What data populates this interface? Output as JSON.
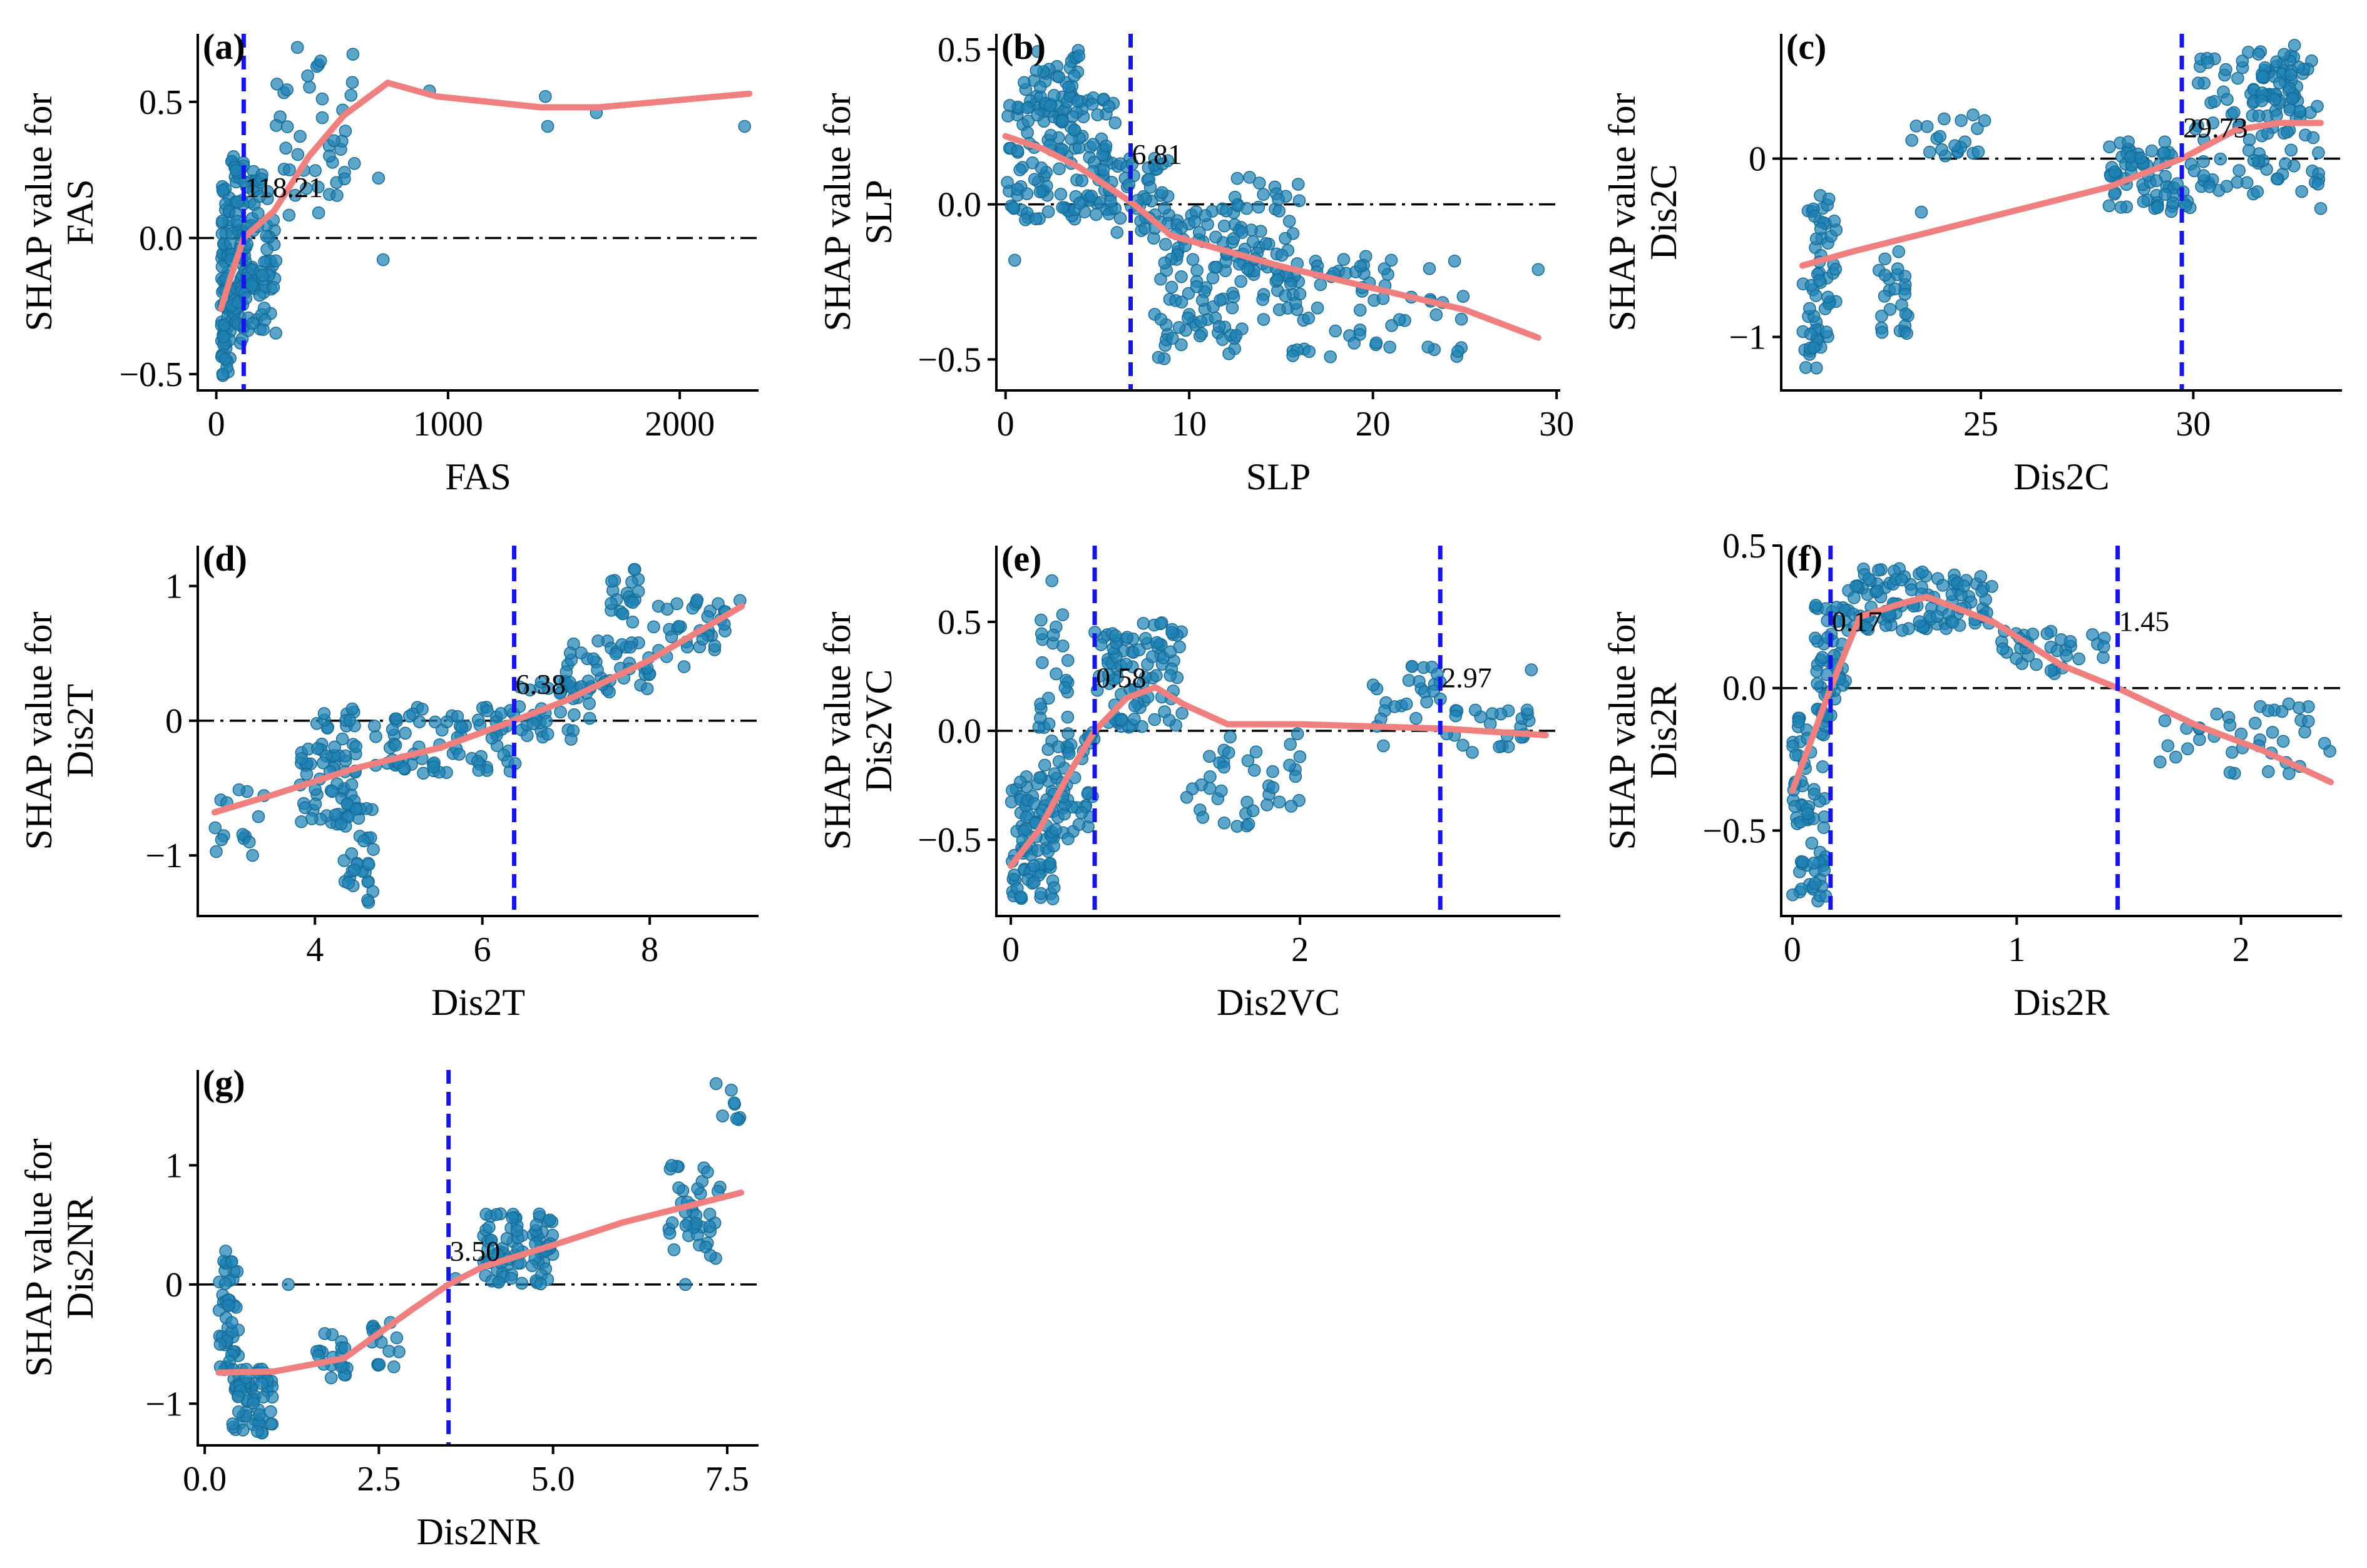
{
  "figure": {
    "background": "#ffffff"
  },
  "colors": {
    "points": "#1f82b4",
    "fit": "#f07f7f",
    "threshold": "#1515e8",
    "zero": "#000000"
  },
  "chart_data": [
    {
      "id": "a",
      "type": "scatter",
      "panel_label": "(a)",
      "xlabel": "FAS",
      "ylabel_lines": [
        "SHAP value for",
        "FAS"
      ],
      "xlim": [
        -80,
        2340
      ],
      "ylim": [
        -0.56,
        0.75
      ],
      "xticks": [
        0,
        1000,
        2000
      ],
      "xtick_labels": [
        "0",
        "1000",
        "2000"
      ],
      "yticks": [
        -0.5,
        0.0,
        0.5
      ],
      "ytick_labels": [
        "−0.5",
        "0.0",
        "0.5"
      ],
      "thresholds": [
        {
          "x": 118.21,
          "label": "118.21",
          "label_y": 0.15
        }
      ],
      "fit": [
        [
          20,
          -0.26
        ],
        [
          60,
          -0.15
        ],
        [
          118,
          0
        ],
        [
          250,
          0.1
        ],
        [
          400,
          0.3
        ],
        [
          550,
          0.45
        ],
        [
          740,
          0.57
        ],
        [
          950,
          0.52
        ],
        [
          1400,
          0.48
        ],
        [
          1650,
          0.48
        ],
        [
          2300,
          0.53
        ]
      ],
      "clusters": [
        {
          "x": [
            20,
            60
          ],
          "y": [
            -0.52,
            0.2
          ],
          "n": 70
        },
        {
          "x": [
            60,
            120
          ],
          "y": [
            -0.4,
            0.3
          ],
          "n": 70
        },
        {
          "x": [
            120,
            260
          ],
          "y": [
            -0.35,
            0.25
          ],
          "n": 80
        },
        {
          "x": [
            250,
            600
          ],
          "y": [
            0.05,
            0.7
          ],
          "n": 40
        }
      ],
      "extra_points": [
        [
          700,
          0.22
        ],
        [
          720,
          -0.08
        ],
        [
          920,
          0.54
        ],
        [
          1420,
          0.52
        ],
        [
          1430,
          0.41
        ],
        [
          1640,
          0.46
        ],
        [
          2280,
          0.41
        ],
        [
          300,
          0.33
        ],
        [
          350,
          0.7
        ],
        [
          450,
          0.65
        ]
      ]
    },
    {
      "id": "b",
      "type": "scatter",
      "panel_label": "(b)",
      "xlabel": "SLP",
      "ylabel_lines": [
        "SHAP value for",
        "SLP"
      ],
      "xlim": [
        -0.5,
        30.2
      ],
      "ylim": [
        -0.6,
        0.55
      ],
      "xticks": [
        0,
        10,
        20,
        30
      ],
      "xtick_labels": [
        "0",
        "10",
        "20",
        "30"
      ],
      "yticks": [
        -0.5,
        0.0,
        0.5
      ],
      "ytick_labels": [
        "−0.5",
        "0.0",
        "0.5"
      ],
      "thresholds": [
        {
          "x": 6.81,
          "label": "6.81",
          "label_y": 0.13
        }
      ],
      "fit": [
        [
          0,
          0.22
        ],
        [
          2,
          0.18
        ],
        [
          4,
          0.12
        ],
        [
          6,
          0.04
        ],
        [
          7,
          0
        ],
        [
          9,
          -0.1
        ],
        [
          12,
          -0.15
        ],
        [
          15,
          -0.2
        ],
        [
          20,
          -0.27
        ],
        [
          25,
          -0.34
        ],
        [
          29,
          -0.43
        ]
      ],
      "clusters": [
        {
          "x": [
            0,
            6
          ],
          "y": [
            -0.05,
            0.35
          ],
          "n": 140
        },
        {
          "x": [
            1,
            4
          ],
          "y": [
            0.25,
            0.5
          ],
          "n": 40
        },
        {
          "x": [
            6,
            9
          ],
          "y": [
            -0.1,
            0.15
          ],
          "n": 40
        },
        {
          "x": [
            8,
            13
          ],
          "y": [
            -0.5,
            0.0
          ],
          "n": 100
        },
        {
          "x": [
            12,
            16
          ],
          "y": [
            -0.3,
            0.1
          ],
          "n": 50
        },
        {
          "x": [
            14,
            25
          ],
          "y": [
            -0.5,
            -0.15
          ],
          "n": 70
        }
      ],
      "extra_points": [
        [
          29,
          -0.21
        ],
        [
          0.5,
          -0.18
        ],
        [
          21,
          -0.18
        ],
        [
          23,
          -0.46
        ]
      ]
    },
    {
      "id": "c",
      "type": "scatter",
      "panel_label": "(c)",
      "xlabel": "Dis2C",
      "ylabel_lines": [
        "SHAP value for",
        "Dis2C"
      ],
      "xlim": [
        20.3,
        33.5
      ],
      "ylim": [
        -1.3,
        0.7
      ],
      "xticks": [
        25,
        30
      ],
      "xtick_labels": [
        "25",
        "30"
      ],
      "yticks": [
        -1,
        0
      ],
      "ytick_labels": [
        "−1",
        "0"
      ],
      "thresholds": [
        {
          "x": 29.73,
          "label": "29.73",
          "label_y": 0.12
        }
      ],
      "fit": [
        [
          20.8,
          -0.6
        ],
        [
          22,
          -0.52
        ],
        [
          24,
          -0.4
        ],
        [
          26,
          -0.28
        ],
        [
          28,
          -0.16
        ],
        [
          29.73,
          0
        ],
        [
          31,
          0.16
        ],
        [
          32,
          0.2
        ],
        [
          33,
          0.2
        ]
      ],
      "clusters": [
        {
          "x": [
            20.8,
            21.6
          ],
          "y": [
            -1.2,
            -0.2
          ],
          "n": 60
        },
        {
          "x": [
            22.6,
            23.3
          ],
          "y": [
            -1.0,
            -0.5
          ],
          "n": 25
        },
        {
          "x": [
            23.3,
            25.2
          ],
          "y": [
            0.0,
            0.25
          ],
          "n": 20
        },
        {
          "x": [
            28,
            30
          ],
          "y": [
            -0.3,
            0.1
          ],
          "n": 70
        },
        {
          "x": [
            30,
            33
          ],
          "y": [
            -0.2,
            0.6
          ],
          "n": 110
        },
        {
          "x": [
            31.5,
            32.5
          ],
          "y": [
            0.3,
            0.65
          ],
          "n": 30
        }
      ],
      "extra_points": [
        [
          23.6,
          -0.3
        ],
        [
          33,
          -0.28
        ]
      ]
    },
    {
      "id": "d",
      "type": "scatter",
      "panel_label": "(d)",
      "xlabel": "Dis2T",
      "ylabel_lines": [
        "SHAP value for",
        "Dis2T"
      ],
      "xlim": [
        2.6,
        9.3
      ],
      "ylim": [
        -1.45,
        1.3
      ],
      "xticks": [
        4,
        6,
        8
      ],
      "xtick_labels": [
        "4",
        "6",
        "8"
      ],
      "yticks": [
        -1,
        0,
        1
      ],
      "ytick_labels": [
        "−1",
        "0",
        "1"
      ],
      "thresholds": [
        {
          "x": 6.38,
          "label": "6.38",
          "label_y": 0.2
        }
      ],
      "fit": [
        [
          2.8,
          -0.68
        ],
        [
          3.5,
          -0.55
        ],
        [
          4.5,
          -0.35
        ],
        [
          5.5,
          -0.2
        ],
        [
          6.38,
          0
        ],
        [
          7,
          0.15
        ],
        [
          8,
          0.45
        ],
        [
          9.1,
          0.85
        ]
      ],
      "clusters": [
        {
          "x": [
            2.8,
            3.4
          ],
          "y": [
            -1.0,
            -0.5
          ],
          "n": 15
        },
        {
          "x": [
            3.8,
            4.5
          ],
          "y": [
            -0.8,
            0.1
          ],
          "n": 70
        },
        {
          "x": [
            4.3,
            4.7
          ],
          "y": [
            -1.35,
            -0.6
          ],
          "n": 35
        },
        {
          "x": [
            4.7,
            6.4
          ],
          "y": [
            -0.4,
            0.1
          ],
          "n": 80
        },
        {
          "x": [
            6.4,
            7.3
          ],
          "y": [
            -0.15,
            0.3
          ],
          "n": 40
        },
        {
          "x": [
            7,
            8
          ],
          "y": [
            0.2,
            0.6
          ],
          "n": 40
        },
        {
          "x": [
            7.5,
            7.9
          ],
          "y": [
            0.7,
            1.15
          ],
          "n": 20
        },
        {
          "x": [
            8,
            9.1
          ],
          "y": [
            0.4,
            0.9
          ],
          "n": 35
        }
      ],
      "extra_points": []
    },
    {
      "id": "e",
      "type": "scatter",
      "panel_label": "(e)",
      "xlabel": "Dis2VC",
      "ylabel_lines": [
        "SHAP value for",
        "Dis2VC"
      ],
      "xlim": [
        -0.1,
        3.8
      ],
      "ylim": [
        -0.85,
        0.85
      ],
      "xticks": [
        0,
        2
      ],
      "xtick_labels": [
        "0",
        "2"
      ],
      "yticks": [
        -0.5,
        0.0,
        0.5
      ],
      "ytick_labels": [
        "−0.5",
        "0.0",
        "0.5"
      ],
      "thresholds": [
        {
          "x": 0.58,
          "label": "0.58",
          "label_y": 0.2
        },
        {
          "x": 2.97,
          "label": "2.97",
          "label_y": 0.2
        }
      ],
      "fit": [
        [
          0,
          -0.62
        ],
        [
          0.2,
          -0.45
        ],
        [
          0.4,
          -0.2
        ],
        [
          0.58,
          0
        ],
        [
          0.8,
          0.15
        ],
        [
          1,
          0.2
        ],
        [
          1.2,
          0.12
        ],
        [
          1.5,
          0.03
        ],
        [
          2,
          0.03
        ],
        [
          3,
          0.01
        ],
        [
          3.7,
          -0.02
        ]
      ],
      "clusters": [
        {
          "x": [
            0,
            0.3
          ],
          "y": [
            -0.78,
            -0.2
          ],
          "n": 80
        },
        {
          "x": [
            0.15,
            0.4
          ],
          "y": [
            -0.5,
            0.7
          ],
          "n": 40
        },
        {
          "x": [
            0.3,
            0.58
          ],
          "y": [
            -0.5,
            0.0
          ],
          "n": 40
        },
        {
          "x": [
            0.58,
            1.2
          ],
          "y": [
            0.0,
            0.5
          ],
          "n": 90
        },
        {
          "x": [
            1.2,
            2.0
          ],
          "y": [
            -0.45,
            0.0
          ],
          "n": 40
        },
        {
          "x": [
            2.4,
            3.0
          ],
          "y": [
            -0.1,
            0.3
          ],
          "n": 25
        },
        {
          "x": [
            3.0,
            3.6
          ],
          "y": [
            -0.1,
            0.1
          ],
          "n": 25
        }
      ],
      "extra_points": [
        [
          3.6,
          0.28
        ]
      ]
    },
    {
      "id": "f",
      "type": "scatter",
      "panel_label": "(f)",
      "xlabel": "Dis2R",
      "ylabel_lines": [
        "SHAP value for",
        "Dis2R"
      ],
      "xlim": [
        -0.05,
        2.45
      ],
      "ylim": [
        -0.8,
        0.5
      ],
      "xticks": [
        0,
        1,
        2
      ],
      "xtick_labels": [
        "0",
        "1",
        "2"
      ],
      "yticks": [
        -0.5,
        0.0,
        0.5
      ],
      "ytick_labels": [
        "−0.5",
        "0.0",
        "0.5"
      ],
      "thresholds": [
        {
          "x": 0.17,
          "label": "0.17",
          "label_y": 0.2
        },
        {
          "x": 1.45,
          "label": "1.45",
          "label_y": 0.2
        }
      ],
      "fit": [
        [
          0,
          -0.36
        ],
        [
          0.1,
          -0.15
        ],
        [
          0.17,
          0
        ],
        [
          0.3,
          0.25
        ],
        [
          0.5,
          0.3
        ],
        [
          0.6,
          0.32
        ],
        [
          0.9,
          0.23
        ],
        [
          1.2,
          0.08
        ],
        [
          1.45,
          0
        ],
        [
          1.8,
          -0.13
        ],
        [
          2.1,
          -0.22
        ],
        [
          2.4,
          -0.33
        ]
      ],
      "clusters": [
        {
          "x": [
            0,
            0.15
          ],
          "y": [
            -0.75,
            -0.1
          ],
          "n": 70
        },
        {
          "x": [
            0.1,
            0.25
          ],
          "y": [
            -0.1,
            0.3
          ],
          "n": 50
        },
        {
          "x": [
            0.25,
            0.9
          ],
          "y": [
            0.2,
            0.42
          ],
          "n": 110
        },
        {
          "x": [
            0.9,
            1.4
          ],
          "y": [
            0.05,
            0.2
          ],
          "n": 35
        },
        {
          "x": [
            1.6,
            2.4
          ],
          "y": [
            -0.3,
            -0.05
          ],
          "n": 40
        }
      ],
      "extra_points": []
    },
    {
      "id": "g",
      "type": "scatter",
      "panel_label": "(g)",
      "xlabel": "Dis2NR",
      "ylabel_lines": [
        "SHAP value for",
        "Dis2NR"
      ],
      "xlim": [
        -0.1,
        7.95
      ],
      "ylim": [
        -1.35,
        1.8
      ],
      "xticks": [
        0.0,
        2.5,
        5.0,
        7.5
      ],
      "xtick_labels": [
        "0.0",
        "2.5",
        "5.0",
        "7.5"
      ],
      "yticks": [
        -1,
        0,
        1
      ],
      "ytick_labels": [
        "−1",
        "0",
        "1"
      ],
      "thresholds": [
        {
          "x": 3.5,
          "label": "3.50",
          "label_y": 0.2
        }
      ],
      "fit": [
        [
          0.2,
          -0.74
        ],
        [
          1,
          -0.73
        ],
        [
          2,
          -0.62
        ],
        [
          3,
          -0.2
        ],
        [
          3.5,
          0
        ],
        [
          4,
          0.15
        ],
        [
          5,
          0.33
        ],
        [
          6,
          0.52
        ],
        [
          7.7,
          0.77
        ]
      ],
      "clusters": [
        {
          "x": [
            0.2,
            0.5
          ],
          "y": [
            -0.9,
            0.2
          ],
          "n": 50
        },
        {
          "x": [
            0.4,
            1.0
          ],
          "y": [
            -1.25,
            -0.7
          ],
          "n": 60
        },
        {
          "x": [
            1.6,
            2.1
          ],
          "y": [
            -0.8,
            -0.4
          ],
          "n": 20
        },
        {
          "x": [
            2.4,
            2.8
          ],
          "y": [
            -0.7,
            -0.3
          ],
          "n": 15
        },
        {
          "x": [
            4.0,
            5.0
          ],
          "y": [
            0.0,
            0.6
          ],
          "n": 80
        },
        {
          "x": [
            6.6,
            7.4
          ],
          "y": [
            0.2,
            1.0
          ],
          "n": 40
        },
        {
          "x": [
            7.3,
            7.7
          ],
          "y": [
            1.3,
            1.7
          ],
          "n": 8
        }
      ],
      "extra_points": [
        [
          0.3,
          0.28
        ],
        [
          1.2,
          0
        ],
        [
          6.9,
          0
        ],
        [
          3.6,
          0.05
        ]
      ]
    }
  ]
}
